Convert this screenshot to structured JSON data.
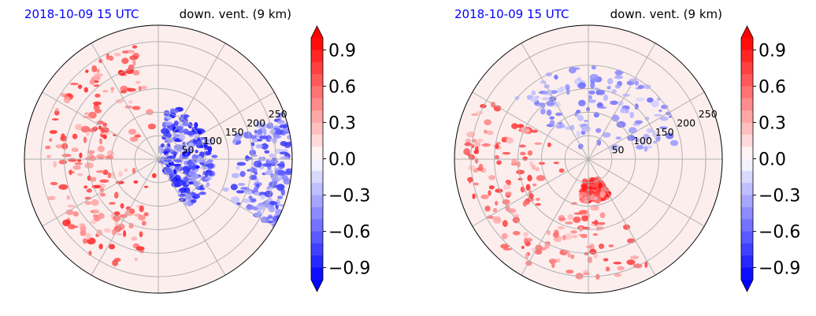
{
  "chart_data": [
    {
      "type": "heatmap",
      "projection": "polar",
      "title_left": "2018-10-09 15 UTC",
      "title_right": "down. vent. (9 km)",
      "title_left_color": "#0000ff",
      "radial_tick_labels": [
        "50",
        "100",
        "150",
        "200",
        "250"
      ],
      "radial_ticks": [
        50,
        100,
        150,
        200,
        250
      ],
      "r_max": 285,
      "angular_grid_step_deg": 30,
      "grid": true,
      "colormap": "bwr",
      "vmin": -1.0,
      "vmax": 1.0,
      "colorbar_extend": "both",
      "colorbar_ticks": [
        0.9,
        0.6,
        0.3,
        0.0,
        -0.3,
        -0.6,
        -0.9
      ],
      "colorbar_tick_labels": [
        "0.9",
        "0.6",
        "0.3",
        "0.0",
        "−0.3",
        "−0.6",
        "−0.9"
      ],
      "colorbar_levels": 20,
      "features": [
        {
          "sign": "positive",
          "angle_from_deg": 100,
          "angle_to_deg": 260,
          "r_from": 30,
          "r_to": 250,
          "strength": 0.9
        },
        {
          "sign": "negative",
          "angle_from_deg": -60,
          "angle_to_deg": 80,
          "r_from": 0,
          "r_to": 120,
          "strength": 1.0
        },
        {
          "sign": "negative",
          "angle_from_deg": -30,
          "angle_to_deg": 20,
          "r_from": 150,
          "r_to": 285,
          "strength": 0.8
        }
      ]
    },
    {
      "type": "heatmap",
      "projection": "polar",
      "title_left": "2018-10-09 15 UTC",
      "title_right": "down. vent. (9 km)",
      "title_left_color": "#0000ff",
      "radial_tick_labels": [
        "50",
        "100",
        "150",
        "200",
        "250"
      ],
      "radial_ticks": [
        50,
        100,
        150,
        200,
        250
      ],
      "r_max": 285,
      "angular_grid_step_deg": 30,
      "grid": true,
      "colormap": "bwr",
      "vmin": -1.0,
      "vmax": 1.0,
      "colorbar_extend": "both",
      "colorbar_ticks": [
        0.9,
        0.6,
        0.3,
        0.0,
        -0.3,
        -0.6,
        -0.9
      ],
      "colorbar_tick_labels": [
        "0.9",
        "0.6",
        "0.3",
        "0.0",
        "−0.3",
        "−0.6",
        "−0.9"
      ],
      "colorbar_levels": 20,
      "features": [
        {
          "sign": "positive",
          "angle_from_deg": 150,
          "angle_to_deg": 300,
          "r_from": 60,
          "r_to": 260,
          "strength": 0.85
        },
        {
          "sign": "negative",
          "angle_from_deg": 10,
          "angle_to_deg": 140,
          "r_from": 20,
          "r_to": 200,
          "strength": 0.6
        },
        {
          "sign": "positive",
          "angle_from_deg": -100,
          "angle_to_deg": -60,
          "r_from": 40,
          "r_to": 90,
          "strength": 1.0
        }
      ]
    }
  ]
}
